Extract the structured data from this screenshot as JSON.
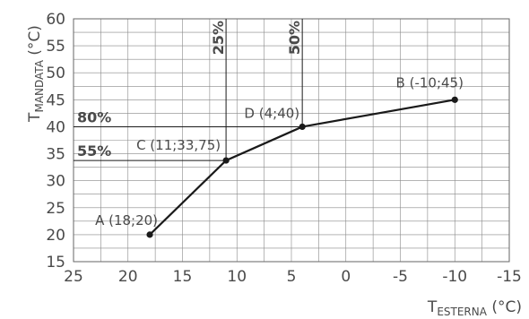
{
  "chart_data": {
    "type": "line",
    "xlabel": {
      "main": "T",
      "sub": "ESTERNA",
      "unit": " (°C)"
    },
    "ylabel": {
      "main": "T",
      "sub": "MANDATA",
      "unit": " (°C)"
    },
    "xlim": [
      25,
      -15
    ],
    "ylim": [
      15,
      60
    ],
    "x_reversed": true,
    "grid": true,
    "x_ticks": [
      {
        "value": 25,
        "label": "25"
      },
      {
        "value": 20,
        "label": "20"
      },
      {
        "value": 15,
        "label": "15"
      },
      {
        "value": 10,
        "label": "10"
      },
      {
        "value": 5,
        "label": "5"
      },
      {
        "value": 0,
        "label": "0"
      },
      {
        "value": -5,
        "label": "-5"
      },
      {
        "value": -10,
        "label": "-10"
      },
      {
        "value": -15,
        "label": "-15"
      }
    ],
    "y_ticks": [
      {
        "value": 15,
        "label": "15"
      },
      {
        "value": 20,
        "label": "20"
      },
      {
        "value": 25,
        "label": "25"
      },
      {
        "value": 30,
        "label": "30"
      },
      {
        "value": 35,
        "label": "35"
      },
      {
        "value": 40,
        "label": "40"
      },
      {
        "value": 45,
        "label": "45"
      },
      {
        "value": 50,
        "label": "50"
      },
      {
        "value": 55,
        "label": "55"
      },
      {
        "value": 60,
        "label": "60"
      }
    ],
    "series": [
      {
        "points": [
          {
            "x": 18,
            "y": 20,
            "label": "A (18;20)"
          },
          {
            "x": 11,
            "y": 33.75,
            "label": "C (11;33,75)"
          },
          {
            "x": 4,
            "y": 40,
            "label": "D (4;40)"
          },
          {
            "x": -10,
            "y": 45,
            "label": "B (-10;45)"
          }
        ]
      }
    ],
    "reference_lines": [
      {
        "orientation": "horizontal",
        "value": 40,
        "label": "80%"
      },
      {
        "orientation": "horizontal",
        "value": 33.75,
        "label": "55%"
      },
      {
        "orientation": "vertical",
        "value": 11,
        "label": "25%"
      },
      {
        "orientation": "vertical",
        "value": 4,
        "label": "50%"
      }
    ],
    "colors": {
      "line": "#1a1a1a",
      "grid": "#888888",
      "text": "#4a4a4a"
    }
  }
}
